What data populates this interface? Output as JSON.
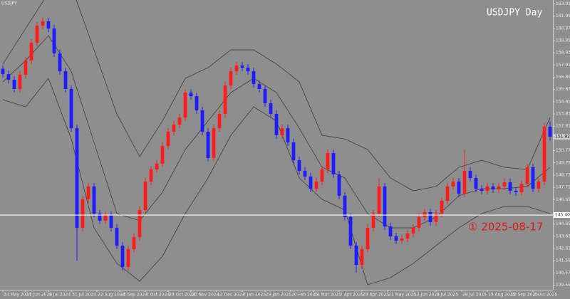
{
  "chart_data": {
    "type": "candlestick",
    "title": "USDJPY Day",
    "symbol_label": "USDJPY",
    "annotation": "① 2025-08-17",
    "annotation_color": "#e81414",
    "up_color": "#ff1c1c",
    "down_color": "#1c1cff",
    "x": [
      0,
      1,
      2,
      3,
      4,
      5,
      6,
      7,
      8,
      9,
      10,
      11,
      12,
      13,
      14,
      15,
      16,
      17,
      18,
      19,
      20,
      21,
      22,
      23,
      24,
      25,
      26,
      27,
      28,
      29,
      30,
      31,
      32,
      33,
      34,
      35,
      36,
      37,
      38,
      39,
      40,
      41,
      42,
      43,
      44,
      45,
      46,
      47,
      48,
      49,
      50,
      51,
      52,
      53,
      54,
      55,
      56,
      57,
      58,
      59,
      60,
      61,
      62,
      63,
      64,
      65,
      66,
      67,
      68,
      69,
      70,
      71,
      72,
      73,
      74,
      75,
      76,
      77,
      78,
      79,
      80,
      81,
      82,
      83,
      84,
      85,
      86,
      87,
      88,
      89,
      90,
      91,
      92,
      93,
      94,
      95,
      96
    ],
    "open": [
      157.6,
      157.15,
      156.68,
      155.91,
      157.1,
      158.28,
      159.77,
      161.19,
      161.55,
      160.95,
      158.88,
      157.39,
      155.91,
      152.64,
      144.33,
      146.71,
      147.78,
      145.52,
      144.93,
      145.4,
      144.33,
      142.85,
      141.07,
      142.55,
      143.56,
      145.82,
      148.19,
      149.2,
      149.68,
      151.16,
      152.35,
      152.94,
      153.53,
      155.61,
      155.31,
      154.13,
      152.35,
      150.16,
      152.64,
      153.83,
      156.2,
      157.39,
      157.87,
      157.69,
      157.39,
      156.32,
      155.91,
      154.72,
      153.83,
      152.05,
      152.64,
      151.46,
      149.97,
      149.08,
      148.61,
      147.6,
      148.19,
      149.2,
      150.57,
      148.79,
      147.01,
      145.23,
      142.85,
      141.25,
      142.55,
      144.33,
      145.52,
      147.78,
      144.45,
      143.62,
      143.27,
      143.44,
      143.86,
      144.33,
      145.23,
      145.64,
      144.81,
      145.52,
      146.59,
      147.78,
      148.19,
      147.18,
      149.08,
      148.49,
      147.6,
      147.42,
      147.78,
      147.54,
      147.78,
      148.13,
      147.42,
      147.3,
      148.01,
      149.38,
      147.6,
      148.19,
      152.76
    ],
    "high": [
      157.9,
      157.45,
      156.98,
      157.4,
      158.58,
      160.07,
      161.49,
      161.85,
      161.85,
      161.25,
      159.18,
      157.69,
      156.21,
      152.94,
      147.01,
      148.08,
      148.08,
      145.82,
      145.7,
      145.7,
      144.63,
      143.15,
      142.85,
      143.86,
      146.12,
      148.49,
      149.5,
      149.98,
      151.46,
      152.65,
      153.24,
      153.83,
      155.91,
      155.91,
      155.61,
      154.43,
      152.65,
      152.94,
      154.13,
      156.5,
      157.69,
      158.17,
      158.17,
      157.99,
      157.69,
      156.62,
      156.21,
      155.02,
      154.13,
      152.94,
      152.94,
      151.76,
      150.27,
      149.38,
      148.91,
      148.49,
      149.5,
      150.87,
      150.87,
      149.09,
      147.31,
      145.53,
      143.15,
      142.85,
      144.63,
      145.82,
      148.49,
      148.08,
      144.75,
      143.92,
      143.74,
      144.16,
      144.63,
      145.53,
      145.94,
      145.94,
      145.82,
      146.89,
      148.08,
      148.49,
      148.49,
      150.86,
      149.38,
      148.79,
      147.9,
      148.08,
      148.08,
      148.08,
      148.43,
      148.43,
      147.72,
      148.31,
      149.68,
      149.68,
      148.49,
      153.06,
      153.2
    ],
    "low": [
      156.85,
      156.38,
      155.61,
      155.61,
      156.8,
      157.98,
      159.47,
      160.89,
      160.65,
      158.58,
      157.09,
      155.61,
      152.34,
      141.6,
      144.03,
      146.41,
      145.22,
      144.63,
      144.63,
      144.03,
      142.55,
      140.77,
      140.77,
      142.25,
      143.26,
      145.52,
      147.89,
      148.9,
      149.38,
      150.86,
      152.05,
      152.64,
      153.23,
      155.01,
      153.83,
      152.05,
      149.86,
      149.86,
      152.34,
      153.53,
      155.9,
      157.09,
      157.39,
      157.09,
      156.02,
      155.61,
      154.42,
      153.53,
      151.75,
      151.75,
      151.16,
      149.67,
      148.78,
      148.31,
      147.3,
      147.3,
      147.89,
      148.9,
      148.49,
      146.71,
      144.93,
      142.55,
      140.6,
      140.95,
      142.25,
      144.03,
      145.22,
      144.15,
      143.32,
      142.97,
      142.97,
      143.14,
      143.56,
      144.03,
      144.93,
      144.51,
      144.51,
      145.22,
      146.29,
      147.48,
      146.88,
      146.88,
      148.19,
      147.3,
      147.12,
      147.12,
      147.24,
      147.24,
      147.48,
      147.12,
      147.0,
      147.0,
      147.71,
      147.3,
      147.3,
      147.89,
      151.63
    ],
    "close": [
      157.15,
      156.68,
      155.91,
      157.1,
      158.28,
      159.77,
      161.19,
      161.55,
      160.95,
      158.88,
      157.39,
      155.91,
      152.64,
      144.33,
      146.71,
      147.78,
      145.52,
      144.93,
      145.4,
      144.33,
      142.85,
      141.07,
      142.55,
      143.56,
      145.82,
      148.19,
      149.2,
      149.68,
      151.16,
      152.35,
      152.94,
      153.53,
      155.61,
      155.31,
      154.13,
      152.35,
      150.16,
      152.64,
      153.83,
      156.2,
      157.39,
      157.87,
      157.69,
      157.39,
      156.32,
      155.91,
      154.72,
      153.83,
      152.05,
      152.64,
      151.46,
      149.97,
      149.08,
      148.61,
      147.6,
      148.19,
      149.2,
      150.57,
      148.79,
      147.01,
      145.23,
      142.85,
      141.25,
      142.55,
      144.33,
      145.52,
      147.78,
      144.45,
      143.62,
      143.27,
      143.44,
      143.86,
      144.33,
      145.23,
      145.64,
      144.81,
      145.52,
      146.59,
      147.78,
      148.19,
      147.18,
      149.08,
      148.49,
      147.6,
      147.42,
      147.78,
      147.54,
      147.78,
      148.13,
      147.42,
      147.3,
      148.01,
      149.38,
      147.6,
      148.19,
      152.76,
      151.93
    ],
    "bands": {
      "color": "#3c3c3c",
      "x": [
        0,
        4,
        8,
        12,
        16,
        20,
        24,
        28,
        32,
        36,
        40,
        44,
        48,
        52,
        56,
        60,
        64,
        68,
        72,
        76,
        80,
        84,
        88,
        92,
        96
      ],
      "upper": [
        157.99,
        160.95,
        163.92,
        164.51,
        159.17,
        153.83,
        150.27,
        153.24,
        156.8,
        157.69,
        159.17,
        159.17,
        157.99,
        156.5,
        152.05,
        151.75,
        150.86,
        148.49,
        147.42,
        147.78,
        149.38,
        149.97,
        149.38,
        149.2,
        153.53
      ],
      "middle": [
        156.5,
        158.28,
        160.36,
        157.39,
        151.46,
        145.52,
        144.93,
        147.3,
        150.86,
        153.24,
        155.61,
        156.8,
        155.61,
        152.64,
        149.38,
        148.49,
        145.52,
        144.33,
        144.33,
        145.23,
        147.01,
        147.6,
        147.6,
        147.78,
        149.38
      ],
      "lower": [
        155.02,
        154.42,
        156.8,
        151.75,
        144.33,
        141.37,
        139.88,
        141.96,
        145.52,
        148.49,
        152.05,
        154.42,
        153.24,
        148.49,
        146.71,
        145.82,
        139.59,
        140.18,
        141.37,
        142.85,
        144.33,
        145.52,
        146.12,
        146.12,
        145.52
      ]
    },
    "hline": {
      "value": 145.4,
      "label": "145.400",
      "color": "#ffffff"
    },
    "current_price": {
      "value": 151.927,
      "label": "151.927"
    },
    "xlim": [
      -0.5,
      96.5
    ],
    "ylim": [
      139.17,
      163.33
    ],
    "yticks": [
      {
        "value": 163.01,
        "label": "163.010"
      },
      {
        "value": 161.99,
        "label": "161.990"
      },
      {
        "value": 160.97,
        "label": "160.970"
      },
      {
        "value": 159.95,
        "label": "159.950"
      },
      {
        "value": 158.93,
        "label": "158.930"
      },
      {
        "value": 157.91,
        "label": "157.910"
      },
      {
        "value": 156.89,
        "label": "156.890"
      },
      {
        "value": 155.87,
        "label": "155.870"
      },
      {
        "value": 154.85,
        "label": "154.850"
      },
      {
        "value": 153.83,
        "label": "153.830"
      },
      {
        "value": 152.81,
        "label": "152.810"
      },
      {
        "value": 150.77,
        "label": "150.770"
      },
      {
        "value": 149.75,
        "label": "149.750"
      },
      {
        "value": 148.73,
        "label": "148.730"
      },
      {
        "value": 147.71,
        "label": "147.710"
      },
      {
        "value": 146.69,
        "label": "146.690"
      },
      {
        "value": 144.65,
        "label": "144.650"
      },
      {
        "value": 143.63,
        "label": "143.630"
      },
      {
        "value": 142.61,
        "label": "142.610"
      },
      {
        "value": 141.59,
        "label": "141.590"
      },
      {
        "value": 140.57,
        "label": "140.570"
      },
      {
        "value": 139.55,
        "label": "139.550"
      }
    ],
    "xticks": [
      {
        "value": 0,
        "label": "24 May 2024"
      },
      {
        "value": 4,
        "label": "17 Jun 2024"
      },
      {
        "value": 8,
        "label": "9 Jul 2024"
      },
      {
        "value": 12,
        "label": "31 Jul 2024"
      },
      {
        "value": 16.5,
        "label": "22 Aug 2024"
      },
      {
        "value": 20.5,
        "label": "13 Sep 2024"
      },
      {
        "value": 25,
        "label": "7 Oct 2024"
      },
      {
        "value": 29,
        "label": "29 Oct 2024"
      },
      {
        "value": 33,
        "label": "20 Nov 2024"
      },
      {
        "value": 37.5,
        "label": "12 Dec 2024"
      },
      {
        "value": 42,
        "label": "7 Jan 2025"
      },
      {
        "value": 46,
        "label": "29 Jan 2025"
      },
      {
        "value": 50.5,
        "label": "20 Feb 2025"
      },
      {
        "value": 54.5,
        "label": "14 Mar 2025"
      },
      {
        "value": 59,
        "label": "7 Apr 2025"
      },
      {
        "value": 63,
        "label": "29 Apr 2025"
      },
      {
        "value": 67.5,
        "label": "21 May 2025"
      },
      {
        "value": 72,
        "label": "12 Jun 2025"
      },
      {
        "value": 76,
        "label": "4 Jul 2025"
      },
      {
        "value": 80.5,
        "label": "28 Jul 2025"
      },
      {
        "value": 85,
        "label": "19 Aug 2025"
      },
      {
        "value": 89,
        "label": "10 Sep 2025"
      },
      {
        "value": 93,
        "label": "2 Oct 2025"
      }
    ]
  }
}
